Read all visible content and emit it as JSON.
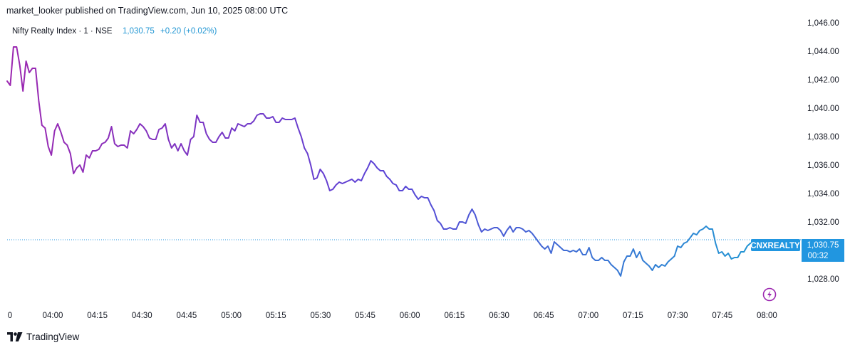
{
  "header": {
    "published": "market_looker published on TradingView.com, Jun 10, 2025 08:00 UTC"
  },
  "legend": {
    "symbol": "Nifty Realty Index · 1 · NSE",
    "price": "1,030.75",
    "change": "+0.20 (+0.02%)"
  },
  "price_label": {
    "ticker": "CNXREALTY",
    "price": "1,030.75",
    "countdown": "00:32"
  },
  "footer": {
    "brand": "TradingView"
  },
  "colors": {
    "line_start": "#9c27b0",
    "line_mid": "#5b43d6",
    "line_end": "#2196d3",
    "price_label_bg": "#2196e0",
    "price_line": "#2196e0",
    "text_blue": "#2962ff",
    "axis_text": "#131722"
  },
  "chart_data": {
    "type": "line",
    "title": "Nifty Realty Index · 1 · NSE",
    "x_ticks": [
      "0",
      "04:00",
      "04:15",
      "04:30",
      "04:45",
      "05:00",
      "05:15",
      "05:30",
      "05:45",
      "06:00",
      "06:15",
      "06:30",
      "06:45",
      "07:00",
      "07:15",
      "07:30",
      "07:45",
      "08:00"
    ],
    "y_ticks": [
      "1,046.00",
      "1,044.00",
      "1,042.00",
      "1,040.00",
      "1,038.00",
      "1,036.00",
      "1,034.00",
      "1,032.00",
      "1,028.00"
    ],
    "ylim": [
      1026.6,
      1046.6
    ],
    "last_value": 1030.75,
    "series": [
      {
        "values": [
          1041.9,
          1041.6,
          1044.3,
          1044.3,
          1043.0,
          1041.2,
          1043.3,
          1042.5,
          1042.8,
          1042.8,
          1040.5,
          1038.8,
          1038.6,
          1037.3,
          1036.7,
          1038.4,
          1038.9,
          1038.3,
          1037.6,
          1037.4,
          1036.8,
          1035.4,
          1035.8,
          1036.0,
          1035.5,
          1036.7,
          1036.5,
          1037.0,
          1037.0,
          1037.1,
          1037.5,
          1037.6,
          1037.9,
          1038.7,
          1037.5,
          1037.3,
          1037.4,
          1037.4,
          1037.2,
          1038.4,
          1038.2,
          1038.5,
          1038.9,
          1038.7,
          1038.4,
          1037.9,
          1037.8,
          1037.8,
          1038.5,
          1038.6,
          1038.9,
          1037.8,
          1037.2,
          1037.5,
          1037.0,
          1037.5,
          1037.0,
          1036.7,
          1037.8,
          1038.0,
          1039.5,
          1039.0,
          1039.0,
          1038.2,
          1037.8,
          1037.6,
          1037.6,
          1038.0,
          1038.3,
          1037.9,
          1037.9,
          1038.6,
          1038.4,
          1038.9,
          1038.8,
          1038.7,
          1038.9,
          1038.9,
          1039.1,
          1039.5,
          1039.6,
          1039.6,
          1039.3,
          1039.3,
          1039.4,
          1039.0,
          1039.0,
          1039.3,
          1039.2,
          1039.2,
          1039.2,
          1039.3,
          1038.6,
          1038.0,
          1037.2,
          1036.8,
          1036.0,
          1035.0,
          1035.1,
          1035.7,
          1035.4,
          1034.9,
          1034.2,
          1034.3,
          1034.6,
          1034.8,
          1034.7,
          1034.8,
          1034.9,
          1035.0,
          1034.8,
          1035.0,
          1034.9,
          1035.4,
          1035.8,
          1036.3,
          1036.1,
          1035.8,
          1035.6,
          1035.6,
          1035.2,
          1035.0,
          1034.7,
          1034.6,
          1034.2,
          1034.2,
          1034.5,
          1034.3,
          1034.3,
          1033.9,
          1033.6,
          1033.8,
          1033.7,
          1033.7,
          1033.2,
          1032.8,
          1032.1,
          1031.9,
          1031.5,
          1031.5,
          1031.6,
          1031.5,
          1031.5,
          1032.0,
          1032.0,
          1031.9,
          1032.5,
          1032.9,
          1032.5,
          1031.8,
          1031.3,
          1031.5,
          1031.4,
          1031.5,
          1031.6,
          1031.6,
          1031.4,
          1031.0,
          1031.4,
          1031.7,
          1031.3,
          1031.6,
          1031.6,
          1031.5,
          1031.3,
          1031.4,
          1031.2,
          1030.9,
          1030.6,
          1030.3,
          1030.1,
          1030.3,
          1029.8,
          1030.6,
          1030.4,
          1030.2,
          1030.0,
          1030.0,
          1029.9,
          1030.0,
          1029.9,
          1030.1,
          1029.7,
          1029.7,
          1030.2,
          1029.5,
          1029.3,
          1029.3,
          1029.5,
          1029.3,
          1029.3,
          1029.0,
          1028.8,
          1028.6,
          1028.2,
          1029.2,
          1029.6,
          1029.6,
          1030.1,
          1029.5,
          1029.9,
          1029.3,
          1029.1,
          1028.9,
          1028.6,
          1029.0,
          1028.8,
          1029.0,
          1028.9,
          1029.2,
          1029.4,
          1029.6,
          1030.3,
          1030.2,
          1030.5,
          1030.6,
          1030.9,
          1031.2,
          1031.1,
          1031.4,
          1031.5,
          1031.7,
          1031.5,
          1031.5,
          1030.5,
          1029.8,
          1029.9,
          1029.6,
          1029.8,
          1029.4,
          1029.5,
          1029.5,
          1029.9,
          1029.9,
          1030.3,
          1030.5,
          1030.6,
          1030.75
        ]
      }
    ]
  }
}
